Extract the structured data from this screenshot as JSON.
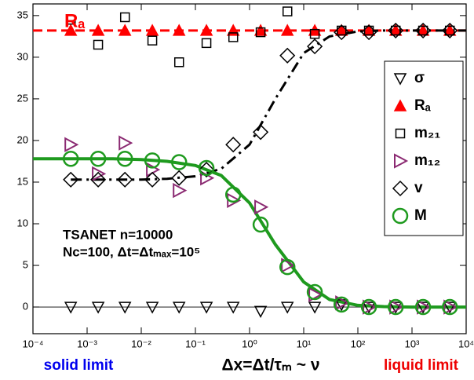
{
  "chart_data": {
    "type": "scatter",
    "xlabel": "Δx=Δt/τₘ ~ ν",
    "annotations": [
      "Rₐ",
      "TSANET n=10000",
      "Nc=100, Δt=Δtₘₐₓ=10⁵",
      "solid limit",
      "liquid limit"
    ],
    "annotation_colors": [
      "#ff0000",
      "#000000",
      "#000000",
      "#0000ee",
      "#ee0000"
    ],
    "x_scale": "log",
    "xlim": [
      0.0001,
      10000
    ],
    "xticks": [
      {
        "value": 0.0001,
        "label": "10⁻⁴"
      },
      {
        "value": 0.001,
        "label": "10⁻³"
      },
      {
        "value": 0.01,
        "label": "10⁻²"
      },
      {
        "value": 0.1,
        "label": "10⁻¹"
      },
      {
        "value": 1,
        "label": "10⁰"
      },
      {
        "value": 10,
        "label": "10¹"
      },
      {
        "value": 100,
        "label": "10²"
      },
      {
        "value": 1000,
        "label": "10³"
      },
      {
        "value": 10000,
        "label": "10⁴"
      }
    ],
    "ylim": [
      -3.2,
      36.4
    ],
    "yticks": [
      0,
      5,
      10,
      15,
      20,
      25,
      30,
      35
    ],
    "zero_line": true,
    "legend": "upper right",
    "x": [
      0.0005,
      0.0016,
      0.005,
      0.016,
      0.05,
      0.16,
      0.5,
      1.6,
      5,
      16,
      50,
      160,
      500,
      1600,
      5000
    ],
    "series": [
      {
        "name": "σ",
        "color": "#000000",
        "marker": "triangle-down",
        "values": [
          0,
          0,
          0,
          0,
          0,
          0,
          0,
          -0.5,
          0,
          0,
          0.3,
          0,
          0,
          0,
          0
        ]
      },
      {
        "name": "Rₐ",
        "color": "#ff0000",
        "marker": "triangle-up-filled",
        "values": [
          33.2,
          33.2,
          33.2,
          33.2,
          33.2,
          33.2,
          33.2,
          33.2,
          33.2,
          33.2,
          33.2,
          33.2,
          33.2,
          33.2,
          33.2
        ]
      },
      {
        "name": "m₂₁",
        "color": "#000000",
        "marker": "square",
        "values": [
          34.5,
          31.5,
          34.8,
          32,
          29.4,
          31.7,
          32.4,
          33,
          35.5,
          32.8,
          33.2,
          33.2,
          33.2,
          33.2,
          33.2
        ]
      },
      {
        "name": "m₁₂",
        "color": "#8b2a72",
        "marker": "triangle-right",
        "values": [
          19.5,
          16,
          19.7,
          16.5,
          14,
          15.5,
          12.8,
          12,
          5,
          1.5,
          0.5,
          0,
          0,
          0,
          0
        ]
      },
      {
        "name": "v",
        "color": "#000000",
        "marker": "diamond",
        "values": [
          15.3,
          15.3,
          15.3,
          15.3,
          15.5,
          16.5,
          19.5,
          21,
          30.2,
          31.3,
          33,
          33,
          33.2,
          33.2,
          33.2
        ]
      },
      {
        "name": "M",
        "color": "#1e9a1e",
        "marker": "circle",
        "values": [
          17.8,
          17.8,
          17.8,
          17.6,
          17.4,
          16.7,
          13.5,
          9.9,
          4.8,
          1.8,
          0.3,
          0,
          0,
          0,
          0
        ]
      }
    ],
    "fits": [
      {
        "color": "#ff0000",
        "style": "dashed",
        "x": [
          0.0001,
          10000
        ],
        "values": [
          33.2,
          33.2
        ]
      },
      {
        "color": "#000000",
        "style": "dash-dot",
        "x": [
          0.0005,
          0.001,
          0.003,
          0.01,
          0.03,
          0.1,
          0.3,
          1,
          3,
          10,
          30,
          100,
          300,
          1000,
          3000,
          10000
        ],
        "values": [
          15.3,
          15.3,
          15.3,
          15.3,
          15.4,
          15.7,
          16.6,
          19.5,
          25,
          30.5,
          32.5,
          33.1,
          33.2,
          33.2,
          33.2,
          33.2
        ]
      },
      {
        "color": "#1e9a1e",
        "style": "solid",
        "x": [
          0.0001,
          0.0003,
          0.001,
          0.003,
          0.01,
          0.03,
          0.1,
          0.3,
          1,
          3,
          10,
          30,
          100,
          300,
          1000,
          3000,
          10000
        ],
        "values": [
          17.8,
          17.8,
          17.8,
          17.8,
          17.7,
          17.5,
          17.0,
          15.8,
          12.5,
          7.5,
          3.0,
          0.9,
          0.2,
          0.05,
          0,
          0,
          0
        ]
      }
    ]
  }
}
